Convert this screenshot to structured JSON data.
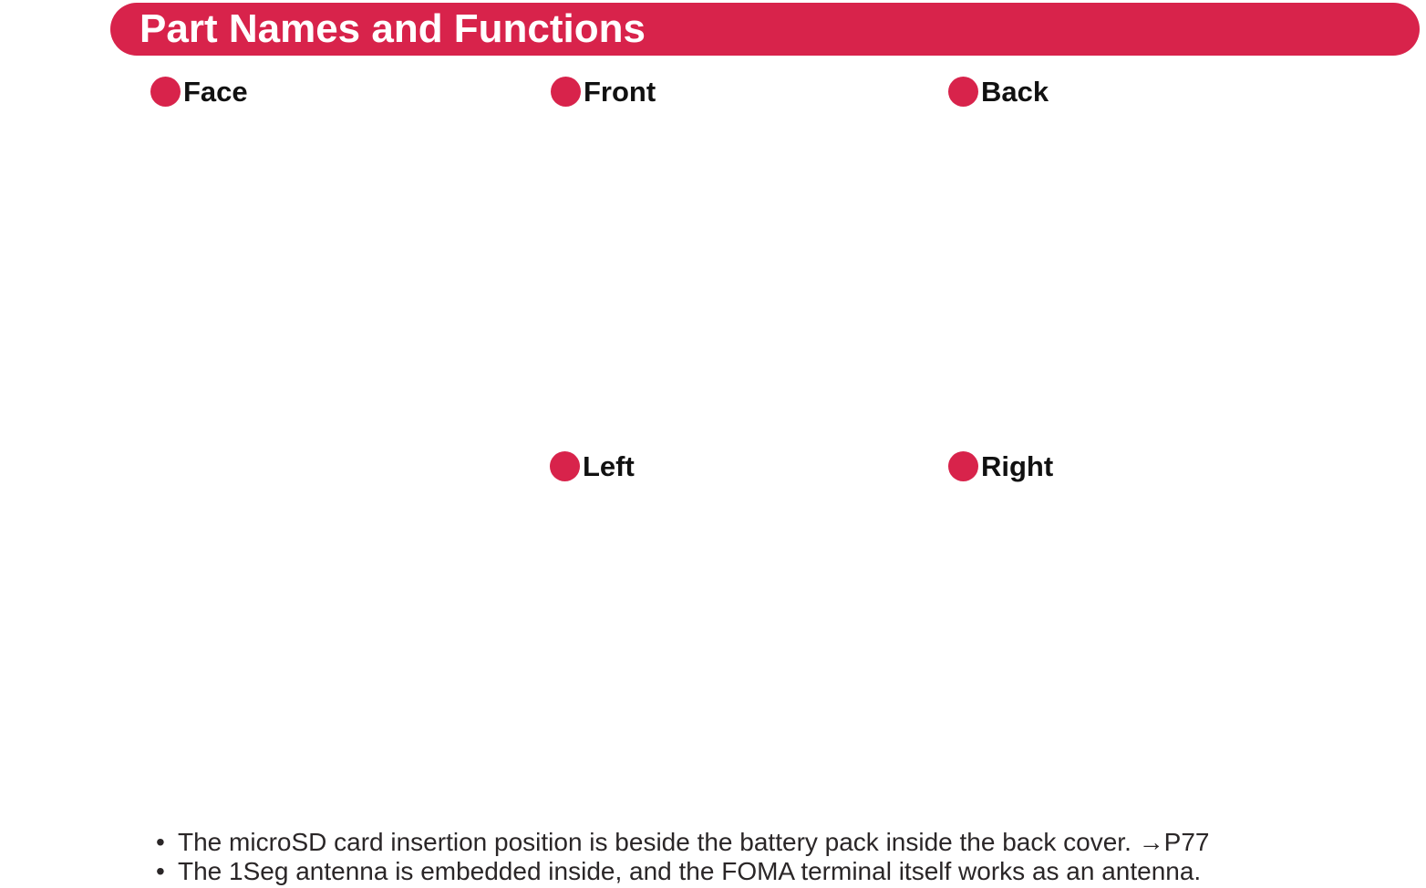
{
  "header": {
    "title": "Part Names and Functions"
  },
  "colors": {
    "accent": "#D8234B",
    "text": "#2A2627"
  },
  "labels": [
    {
      "id": "face",
      "text": "Face"
    },
    {
      "id": "front",
      "text": "Front"
    },
    {
      "id": "back",
      "text": "Back"
    },
    {
      "id": "left",
      "text": "Left"
    },
    {
      "id": "right",
      "text": "Right"
    }
  ],
  "notes": {
    "bullet": "•",
    "items": [
      {
        "text": "The microSD card insertion position is beside the battery pack inside the back cover. →P77"
      },
      {
        "text": "The 1Seg antenna is embedded inside, and the FOMA terminal itself works as an antenna."
      }
    ]
  }
}
